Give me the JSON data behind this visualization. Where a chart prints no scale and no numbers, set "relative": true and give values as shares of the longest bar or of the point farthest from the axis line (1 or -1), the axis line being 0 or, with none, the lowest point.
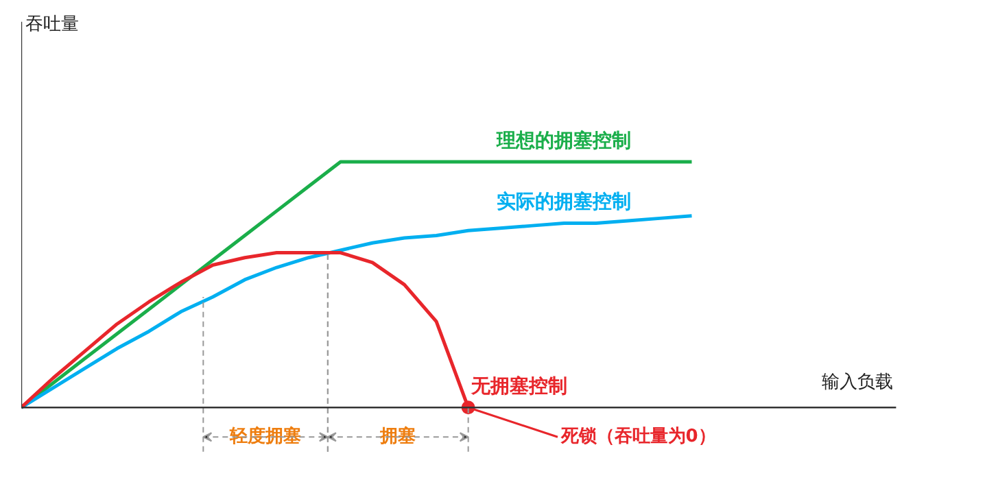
{
  "chart_data": {
    "type": "line",
    "relative": true,
    "xlabel": "输入负载",
    "categories": [
      null,
      null,
      null,
      null,
      null,
      null,
      null,
      null,
      null,
      null,
      null,
      null,
      null,
      null,
      null,
      null,
      null,
      null,
      null,
      null,
      null,
      null,
      null,
      null,
      null,
      null,
      null,
      null
    ],
    "series": [
      {
        "name": "理想的拥塞控制",
        "color": "#1aae4a",
        "values": [
          0,
          0.1,
          0.2,
          0.3,
          0.4,
          0.5,
          0.6,
          0.7,
          0.8,
          0.9,
          1,
          1,
          1,
          1,
          1,
          1,
          1,
          1,
          1,
          1,
          1,
          1,
          null,
          null,
          null,
          null,
          null,
          null
        ]
      },
      {
        "name": "实际的拥塞控制",
        "color": "#00aff0",
        "values": [
          0,
          0.08,
          0.16,
          0.24,
          0.31,
          0.39,
          0.45,
          0.52,
          0.57,
          0.61,
          0.64,
          0.67,
          0.69,
          0.7,
          0.72,
          0.73,
          0.74,
          0.75,
          0.75,
          0.76,
          0.77,
          0.78,
          null,
          null,
          null,
          null,
          null,
          null
        ]
      },
      {
        "name": "无拥塞控制",
        "color": "#e8262b",
        "values": [
          0,
          0.12,
          0.23,
          0.34,
          0.43,
          0.51,
          0.58,
          0.61,
          0.63,
          0.63,
          0.63,
          0.59,
          0.5,
          0.35,
          0,
          null,
          null,
          null,
          null,
          null,
          null,
          null,
          null,
          null,
          null,
          null,
          null,
          null
        ]
      }
    ],
    "annotations": [
      "死锁（吞吐量为0）",
      "轻度拥塞",
      "拥塞",
      "吞吐量"
    ],
    "grid": false,
    "legend": false,
    "marker": "none",
    "line_style": "solid"
  }
}
